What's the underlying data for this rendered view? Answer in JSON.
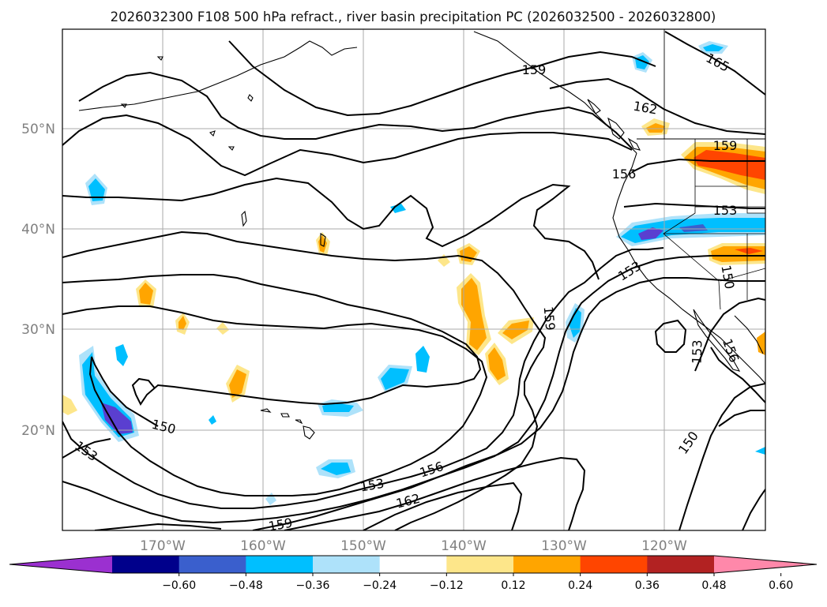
{
  "title": "2026032300 F108 500 hPa refract., river basin precipitation PC (2026032500 - 2026032800)",
  "map": {
    "lon_labels": [
      "170°W",
      "160°W",
      "150°W",
      "140°W",
      "130°W",
      "120°W"
    ],
    "lat_labels": [
      "50°N",
      "40°N",
      "30°N",
      "20°N"
    ],
    "contour_labels": [
      "165",
      "162",
      "159",
      "156",
      "153",
      "150",
      "159",
      "153",
      "156",
      "162",
      "159",
      "150",
      "153",
      "153",
      "150",
      "159",
      "153",
      "156"
    ]
  },
  "colorbar": {
    "ticks": [
      "−0.60",
      "−0.48",
      "−0.36",
      "−0.24",
      "−0.12",
      "0.12",
      "0.24",
      "0.36",
      "0.48",
      "0.60"
    ],
    "colors": [
      "#9b30d0",
      "#00008b",
      "#3a5fcd",
      "#00bfff",
      "#aee2fa",
      "#ffffff",
      "#fde68a",
      "#ffa500",
      "#ff4500",
      "#b22222",
      "#ff88aa"
    ]
  },
  "palette": {
    "neg_light": "#aee2fa",
    "neg_mid": "#00bfff",
    "neg_dark": "#3a5fcd",
    "neg_deep": "#5a3fd0",
    "pos_light": "#fde68a",
    "pos_mid": "#ffa500",
    "pos_dark": "#ff4500"
  }
}
